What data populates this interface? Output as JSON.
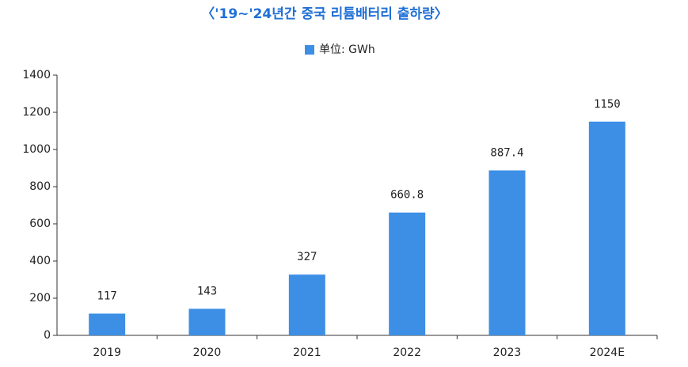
{
  "chart_data": {
    "type": "bar",
    "title": "〈'19~'24년간 중국 리튬배터리 출하량〉",
    "categories": [
      "2019",
      "2020",
      "2021",
      "2022",
      "2023",
      "2024E"
    ],
    "series": [
      {
        "name": "单位: GWh",
        "color": "#3d8fe6",
        "values": [
          117,
          143,
          327,
          660.8,
          887.4,
          1150
        ]
      }
    ],
    "ylim": [
      0,
      1400
    ],
    "yticks": [
      0,
      200,
      400,
      600,
      800,
      1000,
      1200,
      1400
    ],
    "grid": false,
    "legend": "top"
  }
}
